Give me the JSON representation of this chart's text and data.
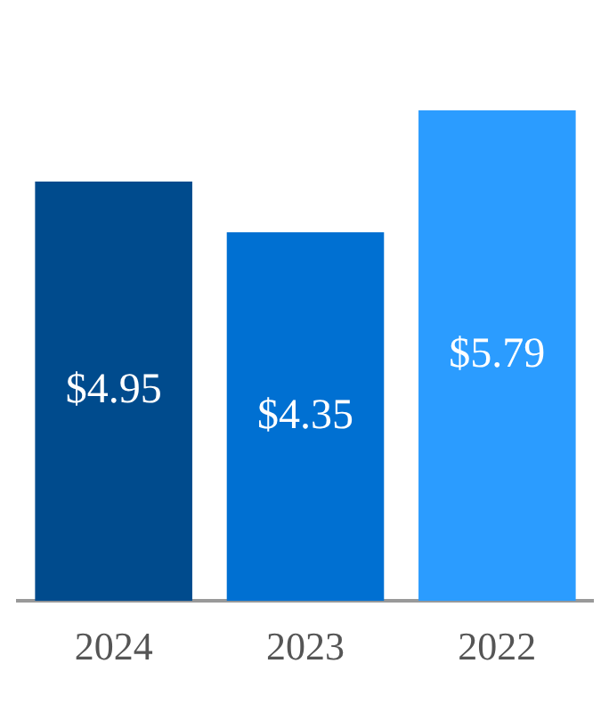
{
  "chart_data": {
    "type": "bar",
    "categories": [
      "2024",
      "2023",
      "2022"
    ],
    "values": [
      4.95,
      4.35,
      5.79
    ],
    "colors": [
      "#004b8d",
      "#0070d2",
      "#2b9cff"
    ],
    "value_labels": [
      "$4.95",
      "$4.35",
      "$5.79"
    ],
    "grid": false,
    "legend": false
  }
}
